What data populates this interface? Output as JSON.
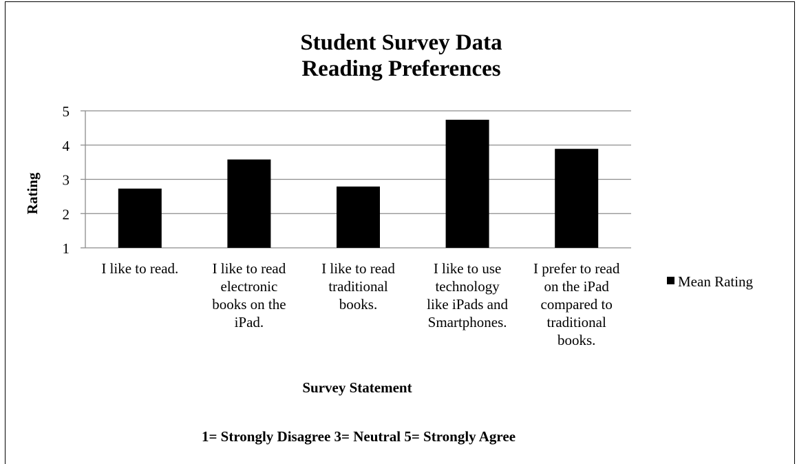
{
  "chart_data": {
    "type": "bar",
    "title": [
      "Student Survey Data",
      "Reading Preferences"
    ],
    "xlabel": "Survey Statement",
    "ylabel": "Rating",
    "footnote": "1= Strongly Disagree 3= Neutral 5= Strongly Agree",
    "ylim": [
      1,
      5
    ],
    "yticks": [
      "1",
      "2",
      "3",
      "4",
      "5"
    ],
    "grid": true,
    "legend_position": "right",
    "categories": [
      [
        "I like to read."
      ],
      [
        "I like to read",
        "electronic",
        "books on the",
        "iPad."
      ],
      [
        "I like to read",
        "traditional",
        "books."
      ],
      [
        "I like to use",
        "technology",
        "like iPads and",
        "Smartphones."
      ],
      [
        "I prefer to read",
        "on the iPad",
        "compared to",
        "traditional",
        "books."
      ]
    ],
    "series": [
      {
        "name": "Mean Rating",
        "color": "#000000",
        "values": [
          2.73,
          3.58,
          2.79,
          4.74,
          3.89
        ]
      }
    ]
  }
}
